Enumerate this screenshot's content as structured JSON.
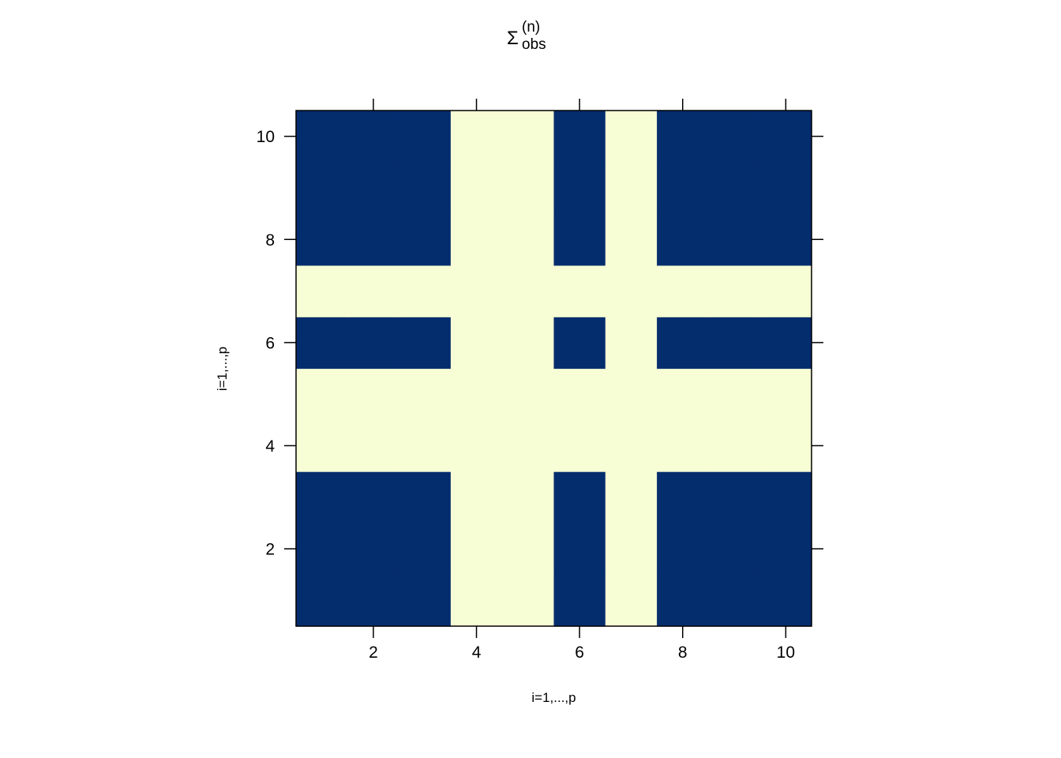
{
  "chart_data": {
    "type": "heatmap",
    "title": {
      "base": "Σ",
      "subscript": "obs",
      "superscript": "(n)"
    },
    "xlabel": "i=1,...,p",
    "ylabel": "i=1,...,p",
    "x_ticks": [
      "2",
      "4",
      "6",
      "8",
      "10"
    ],
    "y_ticks": [
      "2",
      "4",
      "6",
      "8",
      "10"
    ],
    "x_tick_values": [
      2,
      4,
      6,
      8,
      10
    ],
    "y_tick_values": [
      2,
      4,
      6,
      8,
      10
    ],
    "xlim": [
      0.5,
      10.5
    ],
    "ylim": [
      0.5,
      10.5
    ],
    "n_rows": 10,
    "n_cols": 10,
    "colors": {
      "1": "#042d6e",
      "0": "#f7fdd4"
    },
    "values": [
      [
        1,
        1,
        1,
        0,
        0,
        1,
        0,
        1,
        1,
        1
      ],
      [
        1,
        1,
        1,
        0,
        0,
        1,
        0,
        1,
        1,
        1
      ],
      [
        1,
        1,
        1,
        0,
        0,
        1,
        0,
        1,
        1,
        1
      ],
      [
        0,
        0,
        0,
        0,
        0,
        0,
        0,
        0,
        0,
        0
      ],
      [
        0,
        0,
        0,
        0,
        0,
        0,
        0,
        0,
        0,
        0
      ],
      [
        1,
        1,
        1,
        0,
        0,
        1,
        0,
        1,
        1,
        1
      ],
      [
        0,
        0,
        0,
        0,
        0,
        0,
        0,
        0,
        0,
        0
      ],
      [
        1,
        1,
        1,
        0,
        0,
        1,
        0,
        1,
        1,
        1
      ],
      [
        1,
        1,
        1,
        0,
        0,
        1,
        0,
        1,
        1,
        1
      ],
      [
        1,
        1,
        1,
        0,
        0,
        1,
        0,
        1,
        1,
        1
      ]
    ]
  }
}
